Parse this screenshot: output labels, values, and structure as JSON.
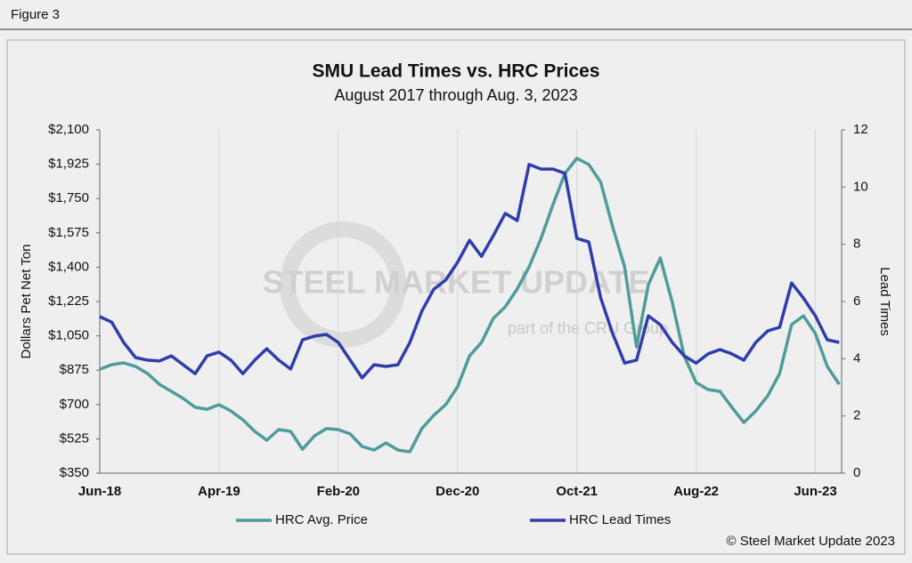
{
  "header": "Figure 3",
  "footer": "© Steel Market Update 2023",
  "chart_data": {
    "type": "line",
    "title": "SMU Lead Times vs. HRC Prices",
    "subtitle": "August 2017 through Aug. 3, 2023",
    "ylabel": "Dollars Pet Net Ton",
    "y2label": "Lead Times",
    "watermark": [
      "STEEL MARKET UPDATE",
      "part of the CRU Group"
    ],
    "categories": [
      "Jun-18",
      null,
      null,
      null,
      null,
      null,
      null,
      null,
      null,
      null,
      "Apr-19",
      null,
      null,
      null,
      null,
      null,
      null,
      null,
      null,
      null,
      "Feb-20",
      null,
      null,
      null,
      null,
      null,
      null,
      null,
      null,
      null,
      "Dec-20",
      null,
      null,
      null,
      null,
      null,
      null,
      null,
      null,
      null,
      "Oct-21",
      null,
      null,
      null,
      null,
      null,
      null,
      null,
      null,
      null,
      "Aug-22",
      null,
      null,
      null,
      null,
      null,
      null,
      null,
      null,
      null,
      "Jun-23",
      null,
      null
    ],
    "ylim": [
      350,
      2100
    ],
    "yticks": [
      {
        "value": 350,
        "label": "$350"
      },
      {
        "value": 525,
        "label": "$525"
      },
      {
        "value": 700,
        "label": "$700"
      },
      {
        "value": 875,
        "label": "$875"
      },
      {
        "value": 1050,
        "label": "$1,050"
      },
      {
        "value": 1225,
        "label": "$1,225"
      },
      {
        "value": 1400,
        "label": "$1,400"
      },
      {
        "value": 1575,
        "label": "$1,575"
      },
      {
        "value": 1750,
        "label": "$1,750"
      },
      {
        "value": 1925,
        "label": "$1,925"
      },
      {
        "value": 2100,
        "label": "$2,100"
      }
    ],
    "y2lim": [
      0,
      12
    ],
    "y2ticks": [
      0,
      2,
      4,
      6,
      8,
      10,
      12
    ],
    "grid": "x",
    "legend": "bottom",
    "series": [
      {
        "name": "HRC Avg. Price",
        "color": "#4e9c9b",
        "axis": "y",
        "values": [
          880,
          903,
          912,
          894,
          858,
          803,
          767,
          731,
          686,
          676,
          699,
          667,
          622,
          563,
          518,
          572,
          563,
          472,
          540,
          577,
          572,
          550,
          486,
          468,
          504,
          468,
          459,
          577,
          645,
          699,
          790,
          948,
          1016,
          1139,
          1198,
          1289,
          1402,
          1547,
          1719,
          1878,
          1955,
          1923,
          1833,
          1606,
          1402,
          994,
          1311,
          1447,
          1221,
          948,
          812,
          776,
          767,
          686,
          608,
          667,
          744,
          858,
          1107,
          1152,
          1062,
          894,
          803
        ]
      },
      {
        "name": "HRC Lead Times",
        "color": "#2f3ea8",
        "axis": "y2",
        "values": [
          5.47,
          5.28,
          4.57,
          4.04,
          3.95,
          3.92,
          4.1,
          3.79,
          3.48,
          4.1,
          4.23,
          3.95,
          3.48,
          3.95,
          4.35,
          3.95,
          3.64,
          4.66,
          4.79,
          4.85,
          4.57,
          3.95,
          3.33,
          3.79,
          3.73,
          3.79,
          4.57,
          5.66,
          6.43,
          6.75,
          7.37,
          8.14,
          7.58,
          8.3,
          9.08,
          8.83,
          10.79,
          10.63,
          10.63,
          10.48,
          8.21,
          8.08,
          6.12,
          4.88,
          3.85,
          3.95,
          5.5,
          5.19,
          4.57,
          4.1,
          3.85,
          4.17,
          4.32,
          4.17,
          3.95,
          4.57,
          4.97,
          5.1,
          6.65,
          6.12,
          5.5,
          4.66,
          4.57
        ]
      }
    ]
  }
}
